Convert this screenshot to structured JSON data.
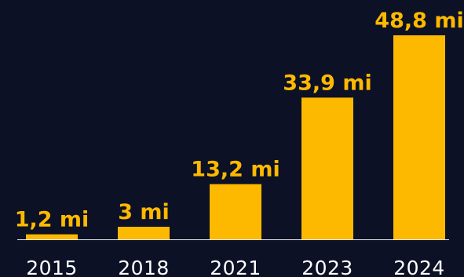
{
  "colors": {
    "background": "#0c1126",
    "bar": "#fcb900",
    "value_label": "#fcb900",
    "axis_line": "#e8e8e8",
    "tick_label": "#ffffff"
  },
  "chart_data": {
    "type": "bar",
    "categories": [
      "2015",
      "2018",
      "2021",
      "2023",
      "2024"
    ],
    "values": [
      1.2,
      3,
      13.2,
      33.9,
      48.8
    ],
    "value_labels": [
      "1,2 mi",
      "3 mi",
      "13,2 mi",
      "33,9 mi",
      "48,8 mi"
    ],
    "title": "",
    "xlabel": "",
    "ylabel": "",
    "ylim": [
      0,
      48.8
    ],
    "grid": false,
    "legend": "none"
  }
}
